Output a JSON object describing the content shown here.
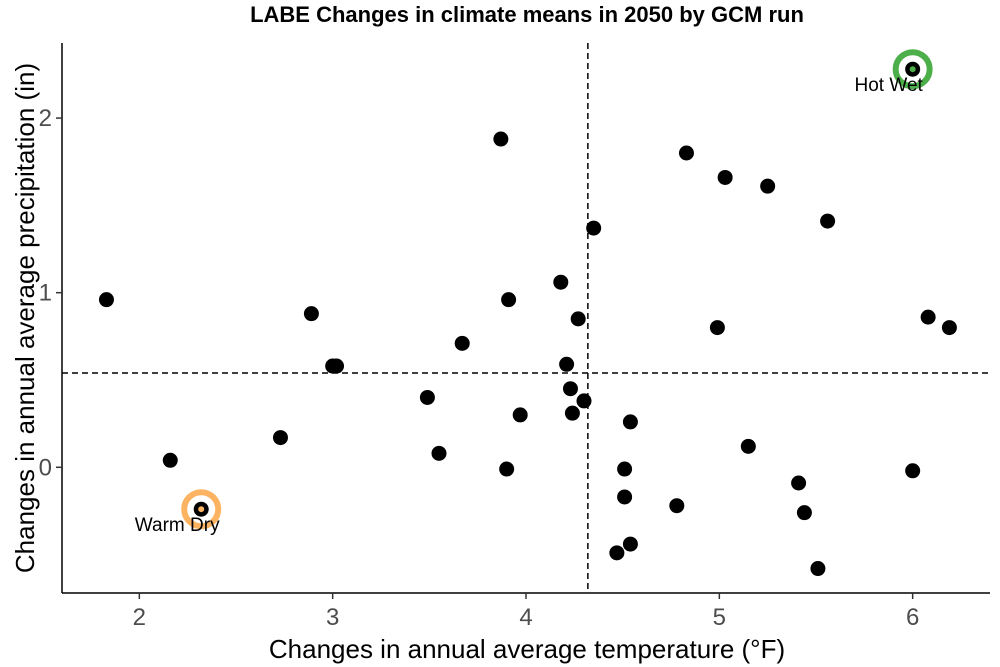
{
  "chart_data": {
    "type": "scatter",
    "title": "LABE Changes in climate means in 2050 by GCM run",
    "xlabel": "Changes in annual average temperature (°F)",
    "ylabel": "Changes in annual average precipitation (in)",
    "xlim": [
      1.6,
      6.4
    ],
    "ylim": [
      -0.72,
      2.43
    ],
    "x_ticks": [
      2,
      3,
      4,
      5,
      6
    ],
    "y_ticks": [
      0,
      1,
      2
    ],
    "grid": false,
    "reference_lines": {
      "x": 4.32,
      "y": 0.54,
      "style": "dashed"
    },
    "points": [
      {
        "x": 1.83,
        "y": 0.96
      },
      {
        "x": 2.16,
        "y": 0.04
      },
      {
        "x": 2.32,
        "y": -0.24
      },
      {
        "x": 2.73,
        "y": 0.17
      },
      {
        "x": 2.89,
        "y": 0.88
      },
      {
        "x": 3.0,
        "y": 0.58
      },
      {
        "x": 3.02,
        "y": 0.58
      },
      {
        "x": 3.49,
        "y": 0.4
      },
      {
        "x": 3.55,
        "y": 0.08
      },
      {
        "x": 3.67,
        "y": 0.71
      },
      {
        "x": 3.87,
        "y": 1.88
      },
      {
        "x": 3.9,
        "y": -0.01
      },
      {
        "x": 3.91,
        "y": 0.96
      },
      {
        "x": 3.97,
        "y": 0.3
      },
      {
        "x": 4.18,
        "y": 1.06
      },
      {
        "x": 4.21,
        "y": 0.59
      },
      {
        "x": 4.23,
        "y": 0.45
      },
      {
        "x": 4.24,
        "y": 0.31
      },
      {
        "x": 4.27,
        "y": 0.85
      },
      {
        "x": 4.3,
        "y": 0.38
      },
      {
        "x": 4.35,
        "y": 1.37
      },
      {
        "x": 4.47,
        "y": -0.49
      },
      {
        "x": 4.51,
        "y": -0.01
      },
      {
        "x": 4.51,
        "y": -0.17
      },
      {
        "x": 4.54,
        "y": -0.44
      },
      {
        "x": 4.54,
        "y": 0.26
      },
      {
        "x": 4.78,
        "y": -0.22
      },
      {
        "x": 4.83,
        "y": 1.8
      },
      {
        "x": 4.99,
        "y": 0.8
      },
      {
        "x": 5.03,
        "y": 1.66
      },
      {
        "x": 5.15,
        "y": 0.12
      },
      {
        "x": 5.25,
        "y": 1.61
      },
      {
        "x": 5.41,
        "y": -0.09
      },
      {
        "x": 5.44,
        "y": -0.26
      },
      {
        "x": 5.51,
        "y": -0.58
      },
      {
        "x": 5.56,
        "y": 1.41
      },
      {
        "x": 6.0,
        "y": -0.02
      },
      {
        "x": 6.0,
        "y": 2.28
      },
      {
        "x": 6.08,
        "y": 0.86
      },
      {
        "x": 6.19,
        "y": 0.8
      }
    ],
    "highlights": [
      {
        "label": "Hot Wet",
        "x": 6.0,
        "y": 2.28,
        "color": "#4daf4a"
      },
      {
        "label": "Warm Dry",
        "x": 2.32,
        "y": -0.24,
        "color": "#fdb462"
      }
    ]
  }
}
